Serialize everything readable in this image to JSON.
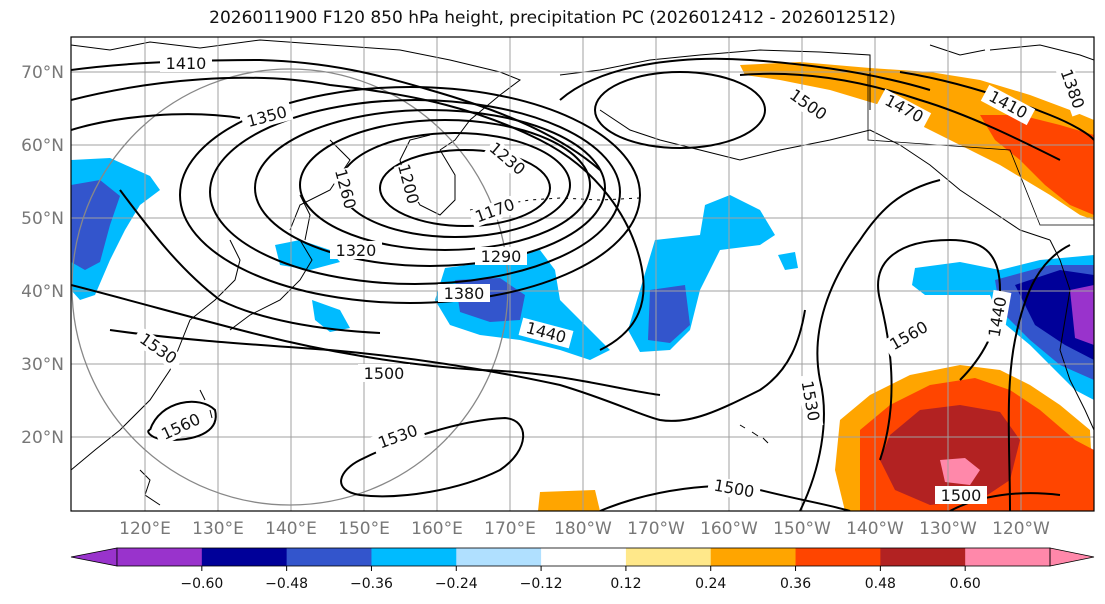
{
  "title": "2026011900 F120 850 hPa height, precipitation PC (2026012412 - 2026012512)",
  "map": {
    "lat_labels": [
      "70°N",
      "60°N",
      "50°N",
      "40°N",
      "30°N",
      "20°N"
    ],
    "lon_labels": [
      "120°E",
      "130°E",
      "140°E",
      "150°E",
      "160°E",
      "170°E",
      "180°W",
      "170°W",
      "160°W",
      "150°W",
      "140°W",
      "130°W",
      "120°W"
    ],
    "contour_labels": [
      "1410",
      "1350",
      "1260",
      "1200",
      "1230",
      "1170",
      "1320",
      "1290",
      "1380",
      "1440",
      "1530",
      "1500",
      "1560",
      "1530",
      "1500",
      "1500",
      "1470",
      "1410",
      "1380",
      "1560",
      "1440",
      "1530"
    ]
  },
  "colorbar": {
    "ticks": [
      "−0.60",
      "−0.48",
      "−0.36",
      "−0.24",
      "−0.12",
      "0.12",
      "0.24",
      "0.36",
      "0.48",
      "0.60"
    ],
    "colors": [
      "#9933cc",
      "#000099",
      "#3355cc",
      "#00bbff",
      "#b0e0ff",
      "#ffffff",
      "#ffe88a",
      "#ffa500",
      "#ff4500",
      "#b22222",
      "#ff88aa",
      "#ff88aa"
    ]
  }
}
